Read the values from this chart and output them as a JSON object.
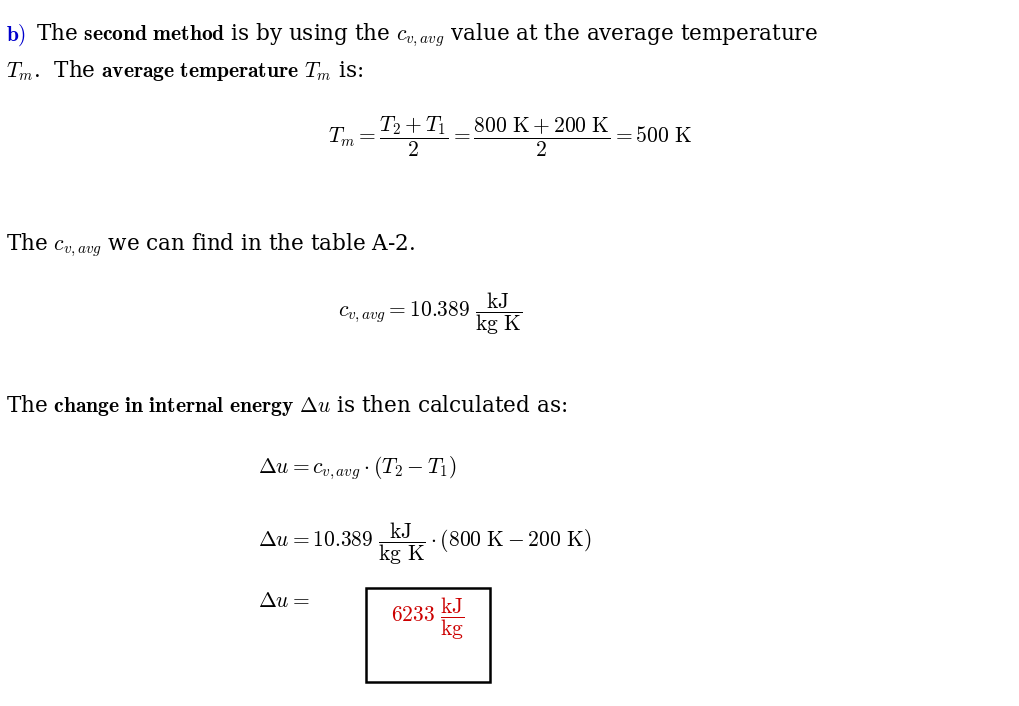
{
  "bg_color": "#ffffff",
  "text_color": "#000000",
  "blue_color": "#0000cc",
  "red_color": "#cc0000",
  "figsize": [
    10.2,
    7.06
  ],
  "dpi": 100,
  "fs": 15.5
}
